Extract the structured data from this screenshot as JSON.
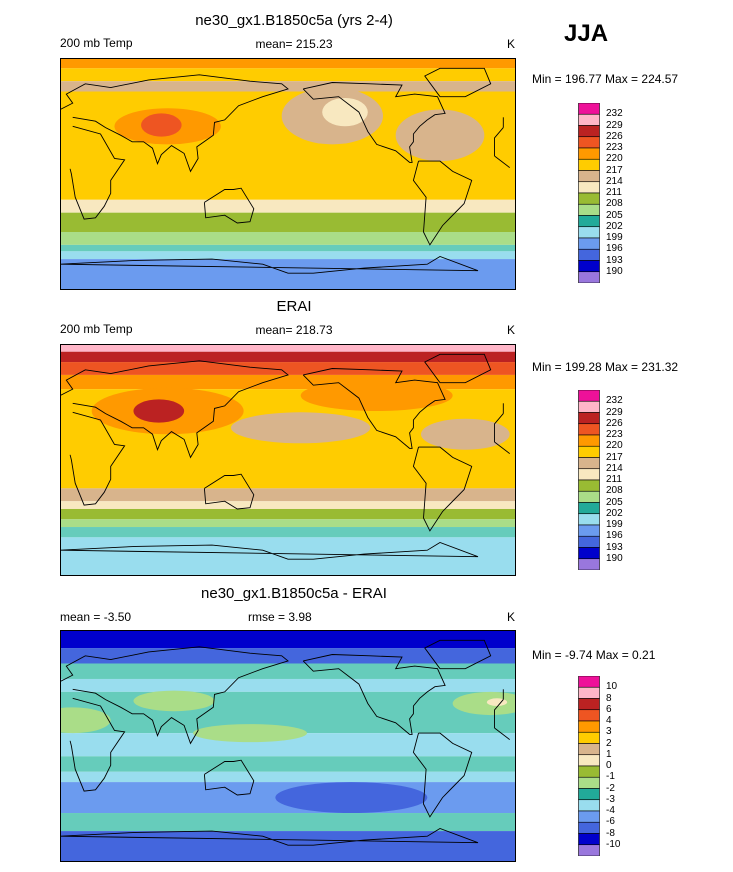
{
  "season": "JJA",
  "units": "K",
  "panels": [
    {
      "id": "model",
      "title": "ne30_gx1.B1850c5a (yrs 2-4)",
      "left_label": "200 mb Temp",
      "center_label": "mean= 215.23",
      "units": "K",
      "minmax": "Min = 196.77 Max = 224.57",
      "bands": [
        {
          "lat": 90,
          "c": "#ff9900"
        },
        {
          "lat": 82,
          "c": "#ffcc00"
        },
        {
          "lat": 72,
          "c": "#d8b48c"
        },
        {
          "lat": 64,
          "c": "#ffcc00"
        },
        {
          "lat": -20,
          "c": "#f8e8c0"
        },
        {
          "lat": -30,
          "c": "#99bb33"
        },
        {
          "lat": -45,
          "c": "#aadd88"
        },
        {
          "lat": -55,
          "c": "#66ccbb"
        },
        {
          "lat": -60,
          "c": "#99ddee"
        },
        {
          "lat": -66,
          "c": "#6b9bef"
        }
      ],
      "blobs": [
        {
          "lon": 85,
          "lat": 37,
          "rx": 42,
          "ry": 14,
          "c": "#ff9900"
        },
        {
          "lon": 80,
          "lat": 38,
          "rx": 16,
          "ry": 9,
          "c": "#ee5522"
        },
        {
          "lon": 215,
          "lat": 45,
          "rx": 40,
          "ry": 22,
          "c": "#d8b48c"
        },
        {
          "lon": 225,
          "lat": 48,
          "rx": 18,
          "ry": 11,
          "c": "#f8e8c0"
        },
        {
          "lon": 300,
          "lat": 30,
          "rx": 35,
          "ry": 20,
          "c": "#d8b48c"
        }
      ]
    },
    {
      "id": "obs",
      "title": "ERAI",
      "left_label": "200 mb Temp",
      "center_label": "mean= 218.73",
      "units": "K",
      "minmax": "Min = 199.28 Max = 231.32",
      "bands": [
        {
          "lat": 90,
          "c": "#ffb6c8"
        },
        {
          "lat": 84,
          "c": "#bb2222"
        },
        {
          "lat": 76,
          "c": "#ee5522"
        },
        {
          "lat": 66,
          "c": "#ff9900"
        },
        {
          "lat": 55,
          "c": "#ffcc00"
        },
        {
          "lat": -22,
          "c": "#d8b48c"
        },
        {
          "lat": -32,
          "c": "#f8e8c0"
        },
        {
          "lat": -38,
          "c": "#99bb33"
        },
        {
          "lat": -46,
          "c": "#aadd88"
        },
        {
          "lat": -52,
          "c": "#66ccbb"
        },
        {
          "lat": -60,
          "c": "#99ddee"
        }
      ],
      "blobs": [
        {
          "lon": 85,
          "lat": 38,
          "rx": 60,
          "ry": 18,
          "c": "#ff9900"
        },
        {
          "lon": 78,
          "lat": 38,
          "rx": 20,
          "ry": 9,
          "c": "#bb2222"
        },
        {
          "lon": 190,
          "lat": 25,
          "rx": 55,
          "ry": 12,
          "c": "#d8b48c"
        },
        {
          "lon": 320,
          "lat": 20,
          "rx": 35,
          "ry": 12,
          "c": "#d8b48c"
        },
        {
          "lon": 250,
          "lat": 50,
          "rx": 60,
          "ry": 12,
          "c": "#ff9900"
        }
      ]
    },
    {
      "id": "diff",
      "title": "ne30_gx1.B1850c5a - ERAI",
      "left_label": "mean =  -3.50",
      "center_label": "rmse =   3.98",
      "units": "K",
      "minmax": "Min =  -9.74 Max =   0.21",
      "bands": [
        {
          "lat": 90,
          "c": "#0000cc"
        },
        {
          "lat": 76,
          "c": "#4466dd"
        },
        {
          "lat": 64,
          "c": "#66ccbb"
        },
        {
          "lat": 52,
          "c": "#99ddee"
        },
        {
          "lat": 42,
          "c": "#66ccbb"
        },
        {
          "lat": 10,
          "c": "#99ddee"
        },
        {
          "lat": -8,
          "c": "#66ccbb"
        },
        {
          "lat": -20,
          "c": "#99ddee"
        },
        {
          "lat": -28,
          "c": "#6b9bef"
        },
        {
          "lat": -52,
          "c": "#66ccbb"
        },
        {
          "lat": -66,
          "c": "#4466dd"
        }
      ],
      "blobs": [
        {
          "lon": 10,
          "lat": 20,
          "rx": 30,
          "ry": 10,
          "c": "#aadd88"
        },
        {
          "lon": 90,
          "lat": 35,
          "rx": 32,
          "ry": 8,
          "c": "#aadd88"
        },
        {
          "lon": 150,
          "lat": 10,
          "rx": 45,
          "ry": 7,
          "c": "#aadd88"
        },
        {
          "lon": 340,
          "lat": 33,
          "rx": 30,
          "ry": 9,
          "c": "#aadd88"
        },
        {
          "lon": 345,
          "lat": 34,
          "rx": 8,
          "ry": 3,
          "c": "#f8e8c0"
        },
        {
          "lon": 230,
          "lat": -40,
          "rx": 60,
          "ry": 12,
          "c": "#4466dd"
        }
      ]
    }
  ],
  "colorbars": [
    {
      "panel": "model",
      "labels": [
        "232",
        "229",
        "226",
        "223",
        "220",
        "217",
        "214",
        "211",
        "208",
        "205",
        "202",
        "199",
        "196",
        "193",
        "190"
      ]
    },
    {
      "panel": "obs",
      "labels": [
        "232",
        "229",
        "226",
        "223",
        "220",
        "217",
        "214",
        "211",
        "208",
        "205",
        "202",
        "199",
        "196",
        "193",
        "190"
      ]
    },
    {
      "panel": "diff",
      "labels": [
        "10",
        "8",
        "6",
        "4",
        "3",
        "2",
        "1",
        "0",
        "-1",
        "-2",
        "-3",
        "-4",
        "-6",
        "-8",
        "-10"
      ]
    }
  ],
  "palette": [
    "#ee1199",
    "#ffb6c8",
    "#bb2222",
    "#ee5522",
    "#ff9900",
    "#ffcc00",
    "#d8b48c",
    "#f8e8c0",
    "#99bb33",
    "#aadd88",
    "#22aa99",
    "#99ddee",
    "#6b9bef",
    "#4466dd",
    "#0000cc",
    "#9977dd"
  ]
}
